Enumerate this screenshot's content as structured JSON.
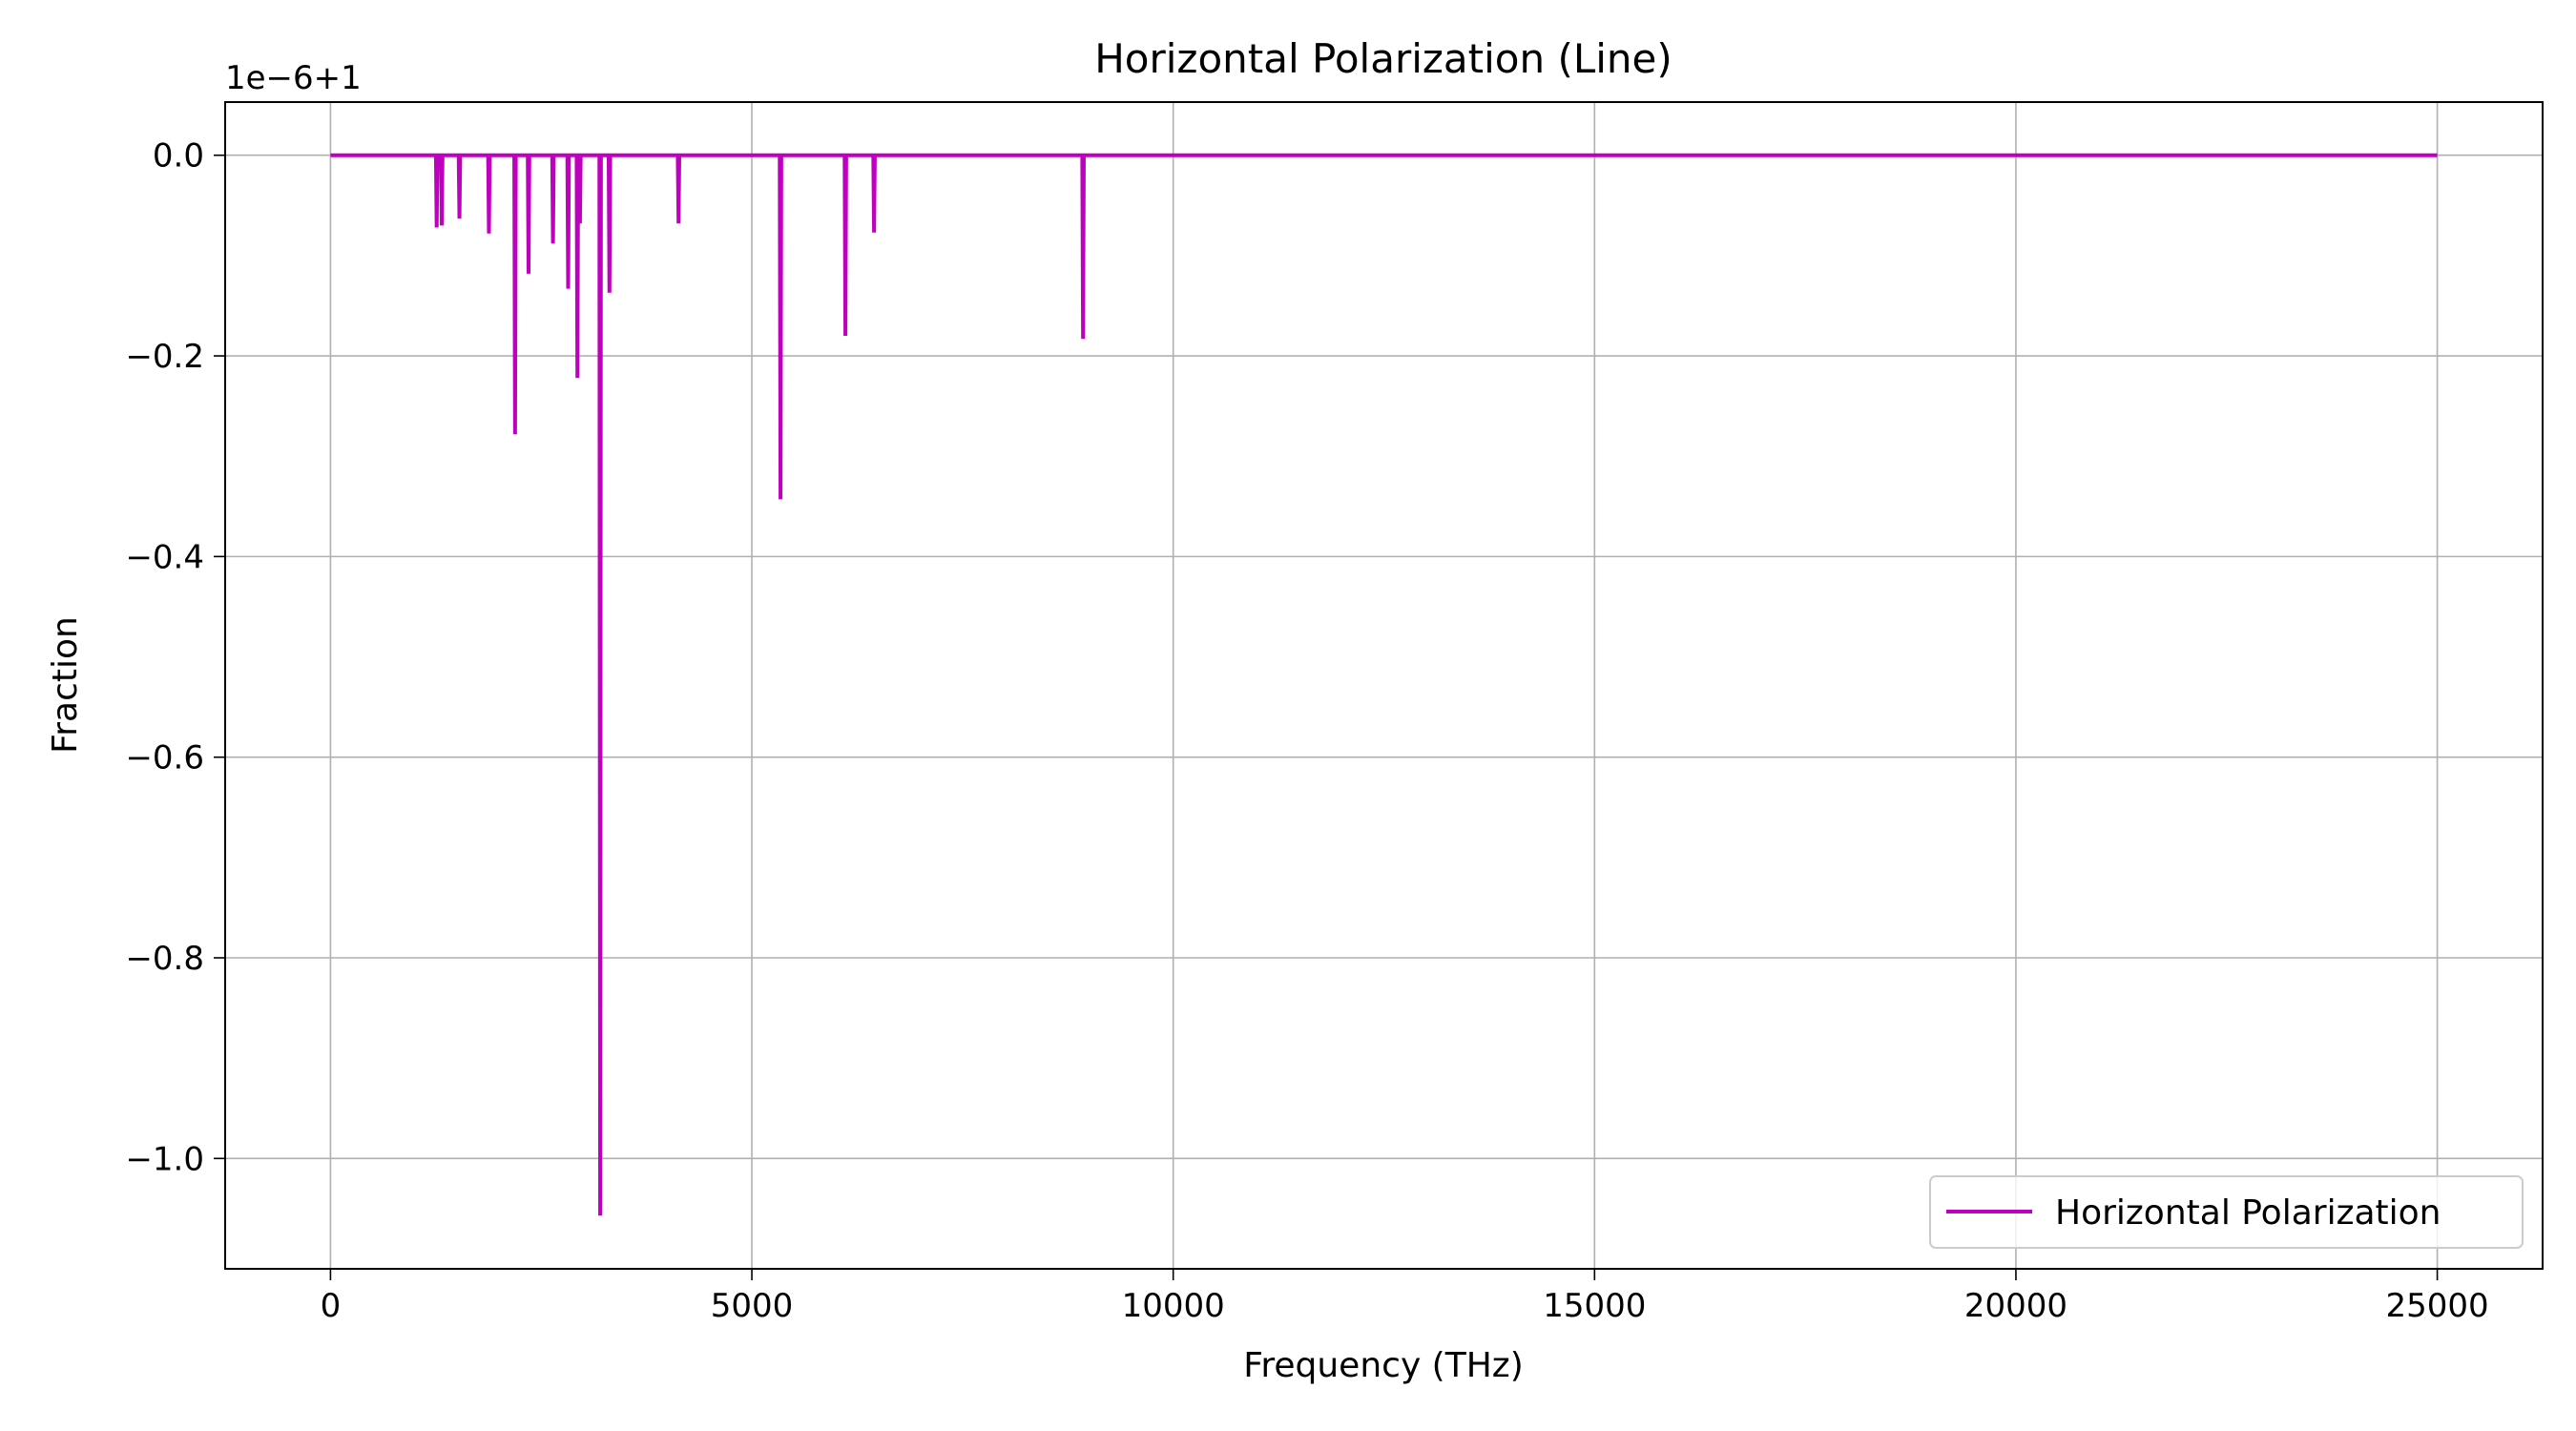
{
  "chart_data": {
    "type": "line",
    "title": "Horizontal Polarization (Line)",
    "xlabel": "Frequency (THz)",
    "ylabel": "Fraction",
    "offset_text": "1e−6+1",
    "xlim": [
      -1250,
      26250
    ],
    "ylim": [
      -1.11,
      0.053
    ],
    "xticks": [
      0,
      5000,
      10000,
      15000,
      20000,
      25000
    ],
    "xtick_labels": [
      "0",
      "5000",
      "10000",
      "15000",
      "20000",
      "25000"
    ],
    "yticks": [
      0.0,
      -0.2,
      -0.4,
      -0.6,
      -0.8,
      -1.0
    ],
    "ytick_labels": [
      "0.0",
      "−0.2",
      "−0.4",
      "−0.6",
      "−0.8",
      "−1.0"
    ],
    "grid": true,
    "legend_position": "lower-right",
    "series": [
      {
        "name": "Horizontal Polarization",
        "color": "#bf00bf",
        "baseline": 0.0,
        "x_range": [
          0,
          25000
        ],
        "dips": [
          {
            "x": 1260,
            "y": -0.072
          },
          {
            "x": 1320,
            "y": -0.07
          },
          {
            "x": 1530,
            "y": -0.063
          },
          {
            "x": 1880,
            "y": -0.078
          },
          {
            "x": 2190,
            "y": -0.278
          },
          {
            "x": 2350,
            "y": -0.118
          },
          {
            "x": 2640,
            "y": -0.088
          },
          {
            "x": 2820,
            "y": -0.133
          },
          {
            "x": 2930,
            "y": -0.222
          },
          {
            "x": 2960,
            "y": -0.068
          },
          {
            "x": 3200,
            "y": -1.057
          },
          {
            "x": 3310,
            "y": -0.137
          },
          {
            "x": 4130,
            "y": -0.068
          },
          {
            "x": 5340,
            "y": -0.343
          },
          {
            "x": 6110,
            "y": -0.18
          },
          {
            "x": 6450,
            "y": -0.077
          },
          {
            "x": 8930,
            "y": -0.183
          }
        ]
      }
    ]
  }
}
